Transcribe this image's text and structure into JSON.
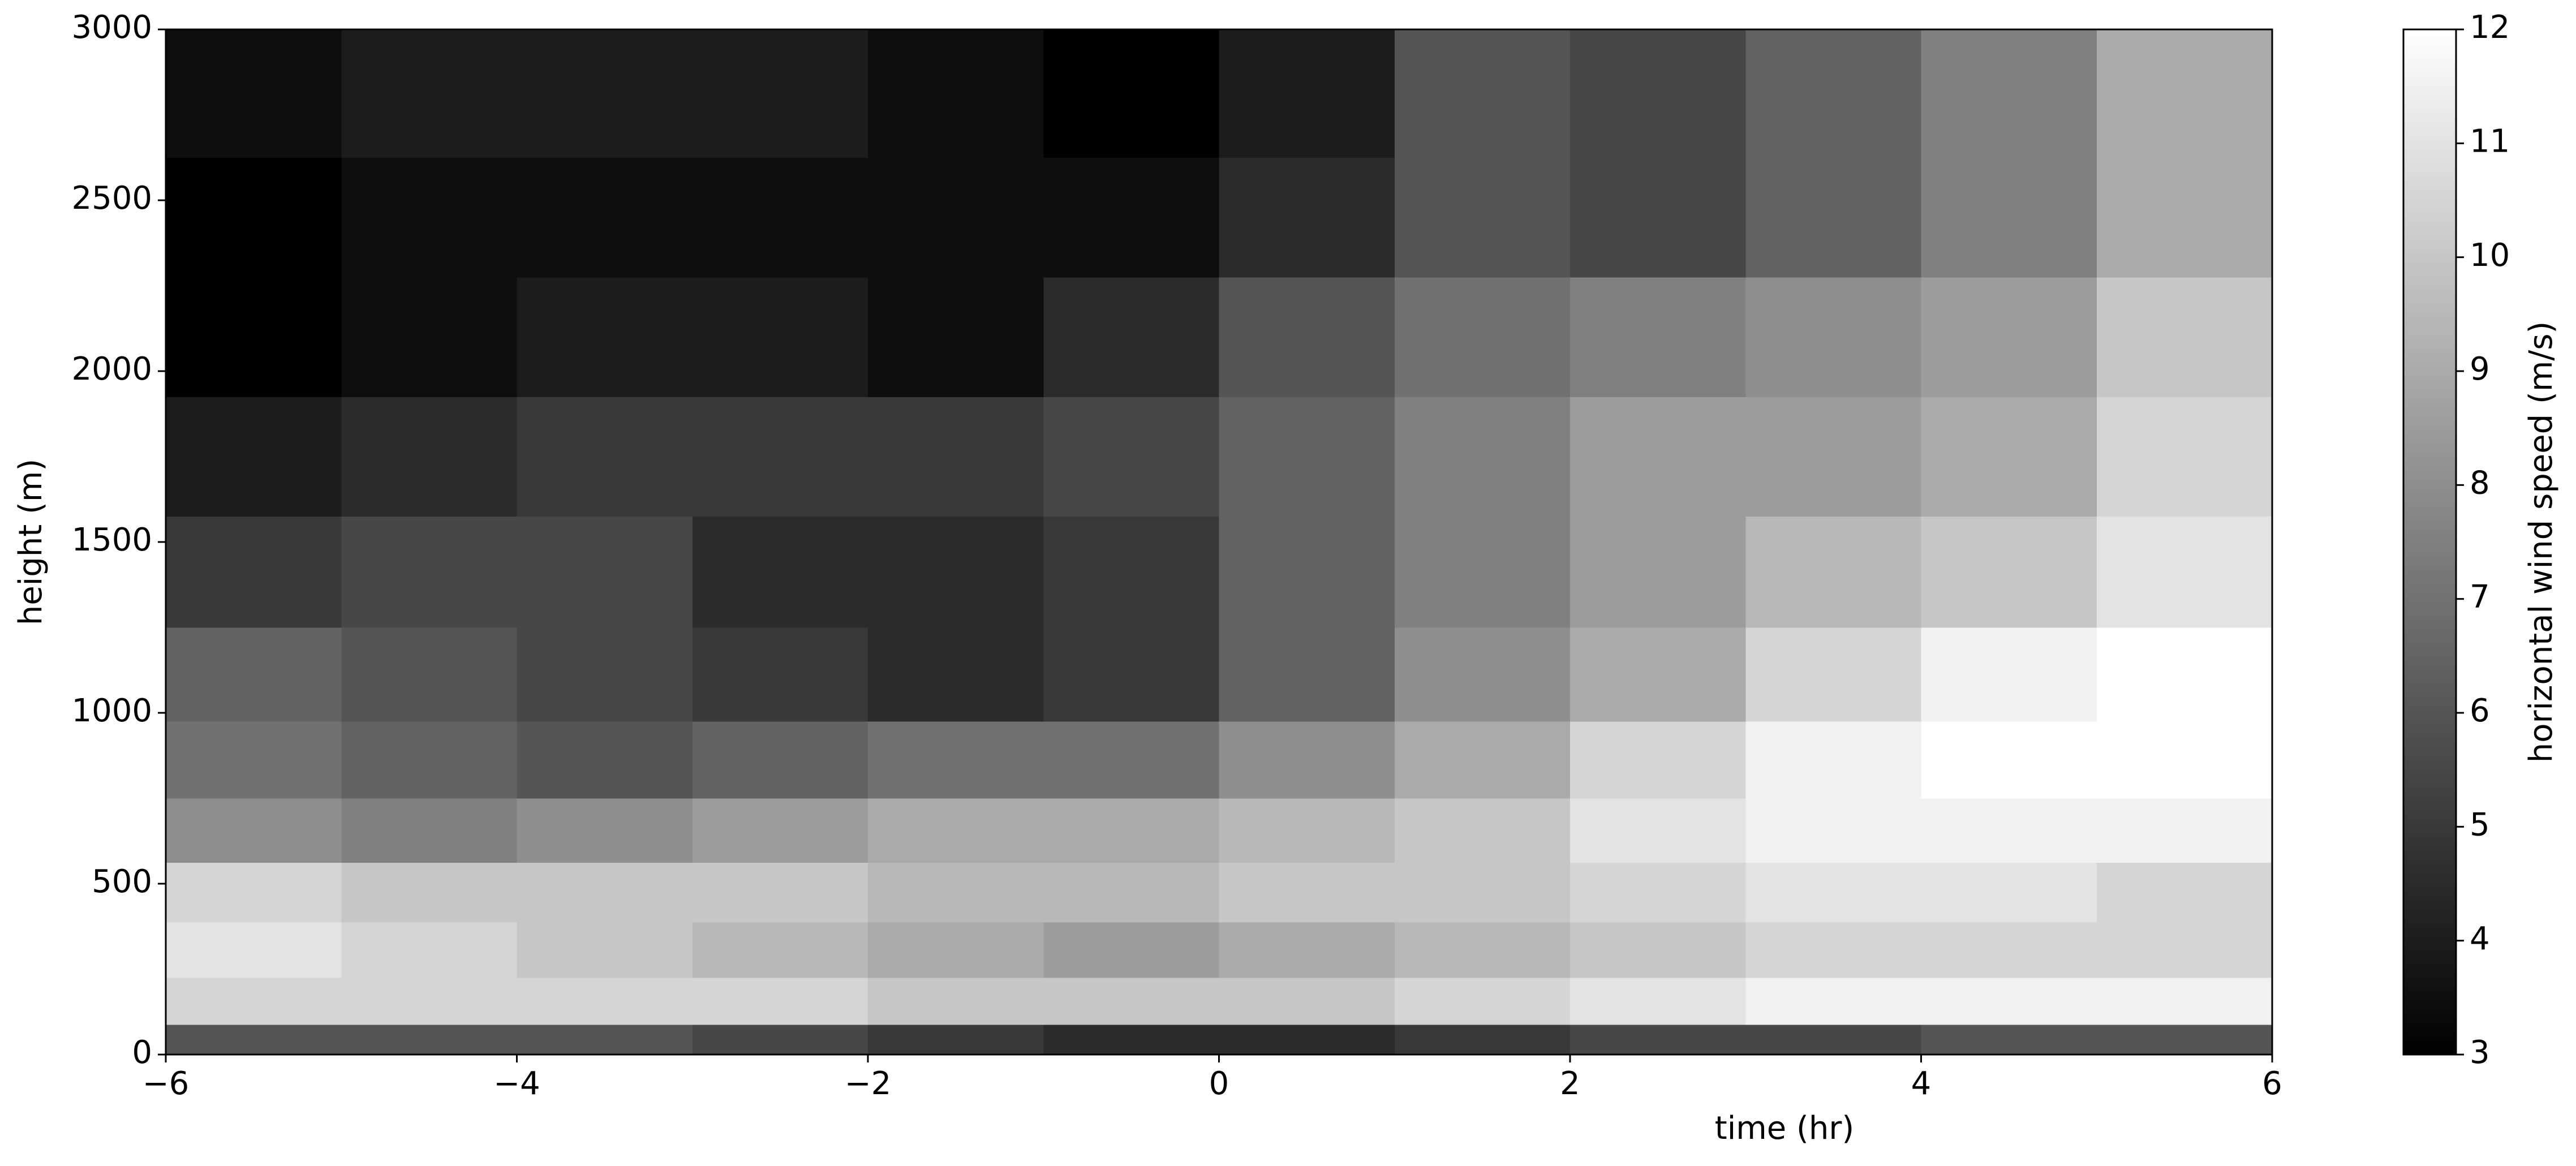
{
  "chart_data": {
    "type": "heatmap",
    "xlabel": "time (hr)",
    "ylabel": "height (m)",
    "colorbar_label": "horizontal wind speed (m/s)",
    "cmap": "gray",
    "x": [
      -5.5,
      -4.5,
      -3.5,
      -2.5,
      -1.5,
      -0.5,
      0.5,
      1.5,
      2.5,
      3.5,
      4.5,
      5.5
    ],
    "y": [
      25,
      150,
      300,
      475,
      650,
      850,
      1100,
      1400,
      1750,
      2100,
      2450,
      2800
    ],
    "z": [
      [
        6,
        6,
        6,
        5.5,
        5,
        4.5,
        4.5,
        5,
        5.5,
        5.5,
        6,
        6
      ],
      [
        10.5,
        10.5,
        10.5,
        10.5,
        10,
        10,
        10,
        10.5,
        11,
        11.5,
        11.5,
        11.5
      ],
      [
        11,
        10.5,
        10,
        9.5,
        9,
        8.5,
        9,
        9.5,
        10,
        10.5,
        10.5,
        10.5
      ],
      [
        10.5,
        10,
        10,
        10,
        9.5,
        9.5,
        10,
        10,
        10.5,
        11,
        11,
        10.5
      ],
      [
        8,
        7.5,
        8,
        8.5,
        9,
        9,
        9.5,
        10,
        11,
        11.5,
        11.5,
        11.5
      ],
      [
        7,
        6.5,
        6,
        6.5,
        7,
        7,
        8,
        9,
        10.5,
        11.5,
        12,
        12
      ],
      [
        6.5,
        6,
        5.5,
        5,
        4.5,
        5,
        6.5,
        8,
        9,
        10.5,
        11.5,
        12
      ],
      [
        5,
        5.5,
        5.5,
        4.5,
        4.5,
        5,
        6.5,
        7.5,
        8.5,
        9.5,
        10,
        11
      ],
      [
        4,
        4.5,
        5,
        5,
        5,
        5.5,
        6.5,
        7.5,
        8.5,
        8.5,
        9,
        10.5
      ],
      [
        3,
        3.5,
        4,
        4,
        3.5,
        4.5,
        6,
        7,
        7.5,
        8,
        8.5,
        10
      ],
      [
        3,
        3.5,
        3.5,
        3.5,
        3.5,
        3.5,
        4.5,
        6,
        5.5,
        6.5,
        7.5,
        9
      ],
      [
        3.5,
        4,
        4,
        4,
        3.5,
        3,
        4,
        6,
        5.5,
        6.5,
        7.5,
        9
      ]
    ],
    "xlim": [
      -6,
      6
    ],
    "xticks": [
      {
        "value": -6,
        "label": "−6"
      },
      {
        "value": -4,
        "label": "−4"
      },
      {
        "value": -2,
        "label": "−2"
      },
      0,
      2,
      4,
      6
    ],
    "ylim": [
      0,
      3000
    ],
    "yticks": [
      0,
      500,
      1000,
      1500,
      2000,
      2500,
      3000
    ],
    "zlim": [
      3,
      12
    ],
    "zticks": [
      3,
      4,
      5,
      6,
      7,
      8,
      9,
      10,
      11,
      12
    ]
  }
}
